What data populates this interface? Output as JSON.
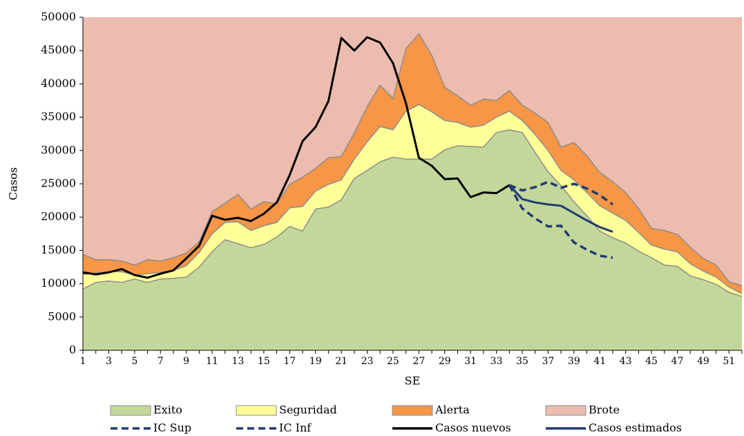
{
  "chart_data": {
    "type": "area",
    "x_label": "SE",
    "y_label": "Casos",
    "x": [
      1,
      2,
      3,
      4,
      5,
      6,
      7,
      8,
      9,
      10,
      11,
      12,
      13,
      14,
      15,
      16,
      17,
      18,
      19,
      20,
      21,
      22,
      23,
      24,
      25,
      26,
      27,
      28,
      29,
      30,
      31,
      32,
      33,
      34,
      35,
      36,
      37,
      38,
      39,
      40,
      41,
      42,
      43,
      44,
      45,
      46,
      47,
      48,
      49,
      50,
      51,
      52
    ],
    "xlim": [
      1,
      52
    ],
    "xticks": [
      1,
      3,
      5,
      7,
      9,
      11,
      13,
      15,
      17,
      19,
      21,
      23,
      25,
      27,
      29,
      31,
      33,
      35,
      37,
      39,
      41,
      43,
      45,
      47,
      49,
      51
    ],
    "ylim": [
      0,
      50000
    ],
    "yticks": [
      0,
      5000,
      10000,
      15000,
      20000,
      25000,
      30000,
      35000,
      40000,
      45000,
      50000
    ],
    "series": [
      {
        "name": "Exito",
        "type": "area",
        "color": "#c4d79b",
        "values": [
          9200,
          10200,
          10400,
          10200,
          10700,
          10200,
          10700,
          10800,
          11000,
          12500,
          14800,
          16600,
          16000,
          15400,
          15900,
          17000,
          18600,
          17900,
          21200,
          21500,
          22600,
          25800,
          27000,
          28300,
          29000,
          28700,
          28700,
          28700,
          30100,
          30700,
          30600,
          30500,
          32700,
          33100,
          32700,
          29700,
          26800,
          24700,
          22300,
          20200,
          17900,
          16900,
          16100,
          14900,
          13900,
          12800,
          12600,
          11200,
          10600,
          9900,
          8700,
          8100
        ]
      },
      {
        "name": "Seguridad",
        "type": "area",
        "color": "#ffff99",
        "values": [
          11400,
          11600,
          11800,
          11800,
          11300,
          11500,
          11700,
          12000,
          12700,
          14700,
          17500,
          19200,
          19300,
          18000,
          18700,
          19200,
          21400,
          21600,
          23900,
          24900,
          25600,
          28700,
          31300,
          33600,
          33100,
          35900,
          36900,
          35800,
          34500,
          34200,
          33500,
          33800,
          35000,
          35900,
          34500,
          32400,
          30000,
          27000,
          25600,
          23700,
          21700,
          20600,
          19500,
          17700,
          15800,
          15200,
          14800,
          13000,
          11900,
          11000,
          9500,
          8500
        ]
      },
      {
        "name": "Alerta",
        "type": "area",
        "color": "#f79646",
        "values": [
          14400,
          13600,
          13600,
          13400,
          12800,
          13600,
          13400,
          13900,
          14600,
          16300,
          20800,
          22100,
          23400,
          21200,
          22300,
          22000,
          24900,
          26000,
          27300,
          28900,
          29100,
          32600,
          36600,
          39800,
          37800,
          45300,
          47500,
          44300,
          39500,
          38200,
          36800,
          37700,
          37500,
          39000,
          36800,
          35600,
          34200,
          30500,
          31200,
          29200,
          26700,
          25300,
          23700,
          21300,
          18300,
          18000,
          17400,
          15500,
          13800,
          12800,
          10300,
          9700
        ]
      },
      {
        "name": "Brote",
        "type": "fill",
        "color": "#ecbcae"
      },
      {
        "name": "IC Sup",
        "type": "line",
        "dash": true,
        "color": "#1f3b73",
        "values": [
          null,
          null,
          null,
          null,
          null,
          null,
          null,
          null,
          null,
          null,
          null,
          null,
          null,
          null,
          null,
          null,
          null,
          null,
          null,
          null,
          null,
          null,
          null,
          null,
          null,
          null,
          null,
          null,
          null,
          null,
          null,
          null,
          null,
          24800,
          24000,
          24500,
          25300,
          24400,
          25000,
          24300,
          23300,
          21900,
          null,
          null,
          null,
          null,
          null,
          null,
          null,
          null,
          null,
          null
        ]
      },
      {
        "name": "IC Inf",
        "type": "line",
        "dash": true,
        "color": "#1f3b73",
        "values": [
          null,
          null,
          null,
          null,
          null,
          null,
          null,
          null,
          null,
          null,
          null,
          null,
          null,
          null,
          null,
          null,
          null,
          null,
          null,
          null,
          null,
          null,
          null,
          null,
          null,
          null,
          null,
          null,
          null,
          null,
          null,
          null,
          null,
          24800,
          21300,
          19800,
          18600,
          18700,
          16200,
          15100,
          14200,
          13900,
          null,
          null,
          null,
          null,
          null,
          null,
          null,
          null,
          null,
          null
        ]
      },
      {
        "name": "Casos nuevos",
        "type": "line",
        "dash": false,
        "color": "#000000",
        "values": [
          11700,
          11400,
          11700,
          12200,
          11300,
          10900,
          11500,
          12000,
          13800,
          15700,
          20200,
          19600,
          19900,
          19400,
          20500,
          22200,
          26300,
          31400,
          33500,
          37400,
          46900,
          45000,
          47000,
          46200,
          43100,
          37100,
          28900,
          27700,
          25700,
          25800,
          23000,
          23700,
          23600,
          24800,
          null,
          null,
          null,
          null,
          null,
          null,
          null,
          null,
          null,
          null,
          null,
          null,
          null,
          null,
          null,
          null,
          null,
          null
        ]
      },
      {
        "name": "Casos estimados",
        "type": "line",
        "dash": false,
        "color": "#1f3b73",
        "values": [
          null,
          null,
          null,
          null,
          null,
          null,
          null,
          null,
          null,
          null,
          null,
          null,
          null,
          null,
          null,
          null,
          null,
          null,
          null,
          null,
          null,
          null,
          null,
          null,
          null,
          null,
          null,
          null,
          null,
          null,
          null,
          null,
          null,
          24800,
          22700,
          22200,
          21900,
          21700,
          20600,
          19500,
          18500,
          17800,
          null,
          null,
          null,
          null,
          null,
          null,
          null,
          null,
          null,
          null
        ]
      }
    ]
  }
}
